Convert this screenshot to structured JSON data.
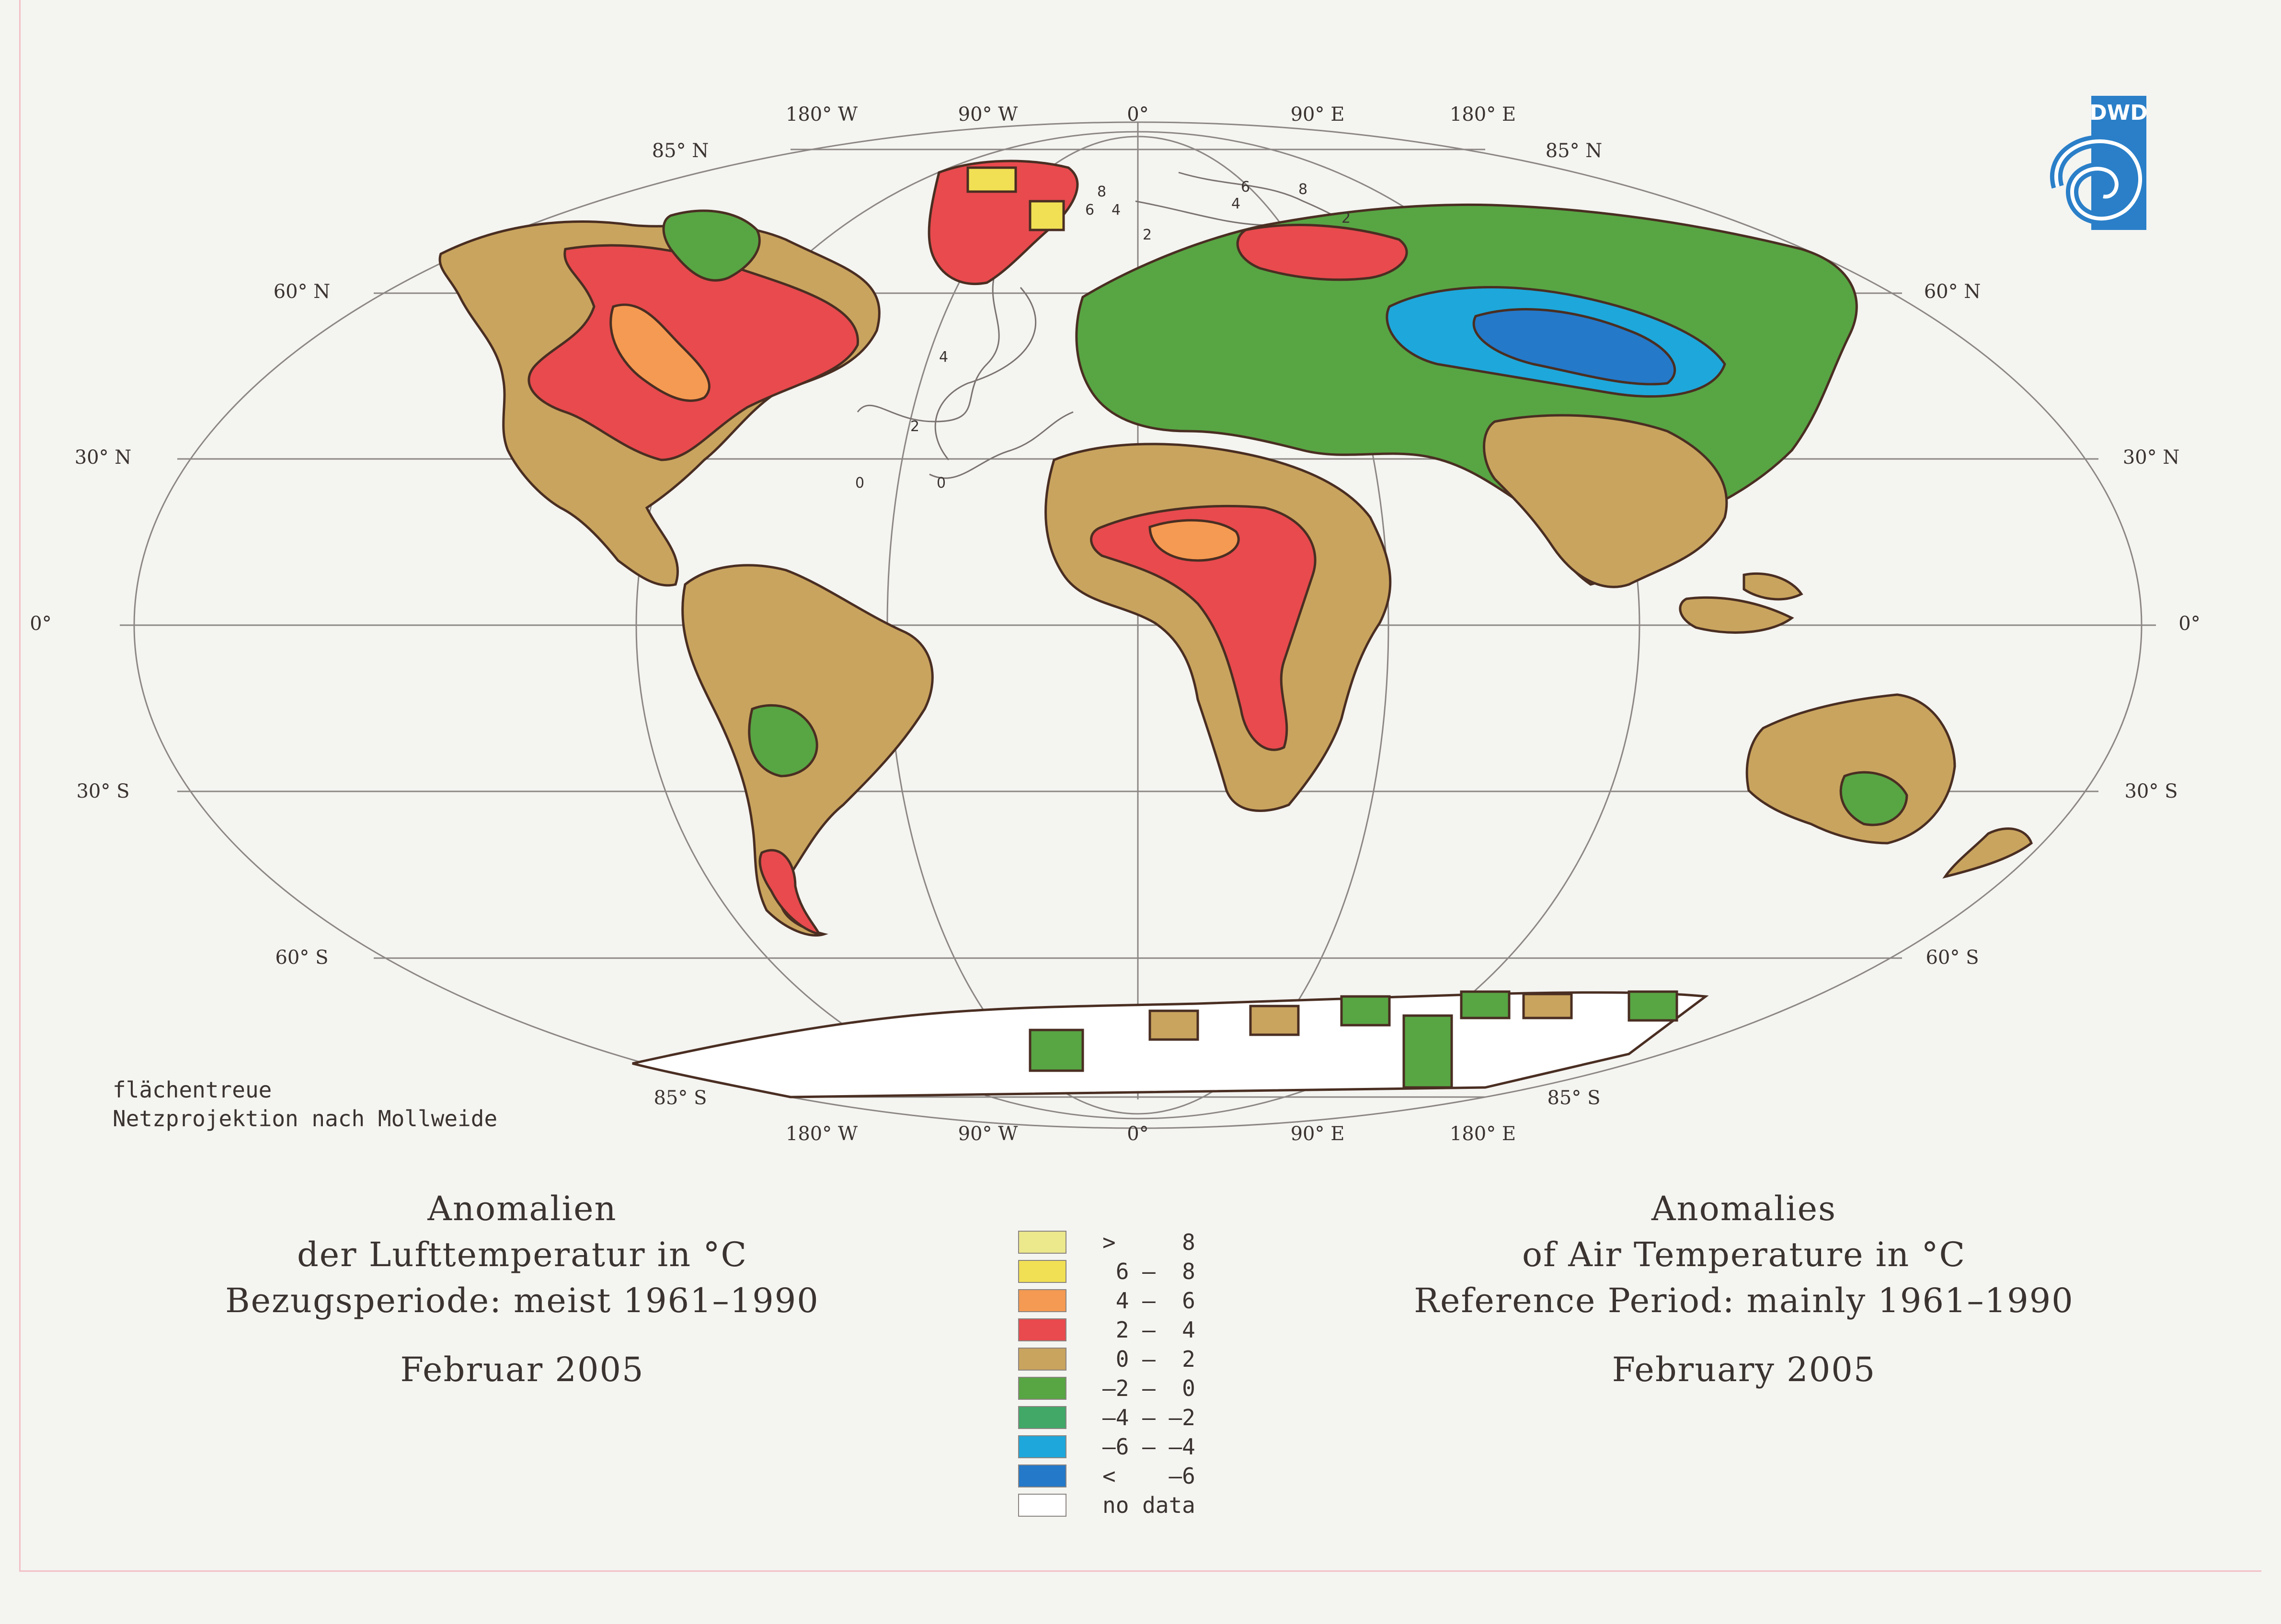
{
  "map": {
    "graticule_labels": {
      "top_lon": [
        "180° W",
        "90° W",
        "0°",
        "90° E",
        "180° E"
      ],
      "bottom_lon": [
        "180° W",
        "90° W",
        "0°",
        "90° E",
        "180° E"
      ],
      "lat_left": [
        "85° N",
        "60° N",
        "30° N",
        "0°",
        "30° S",
        "60° S",
        "85° S"
      ],
      "lat_right": [
        "85° N",
        "60° N",
        "30° N",
        "0°",
        "30° S",
        "60° S",
        "85° S"
      ]
    },
    "ocean_contour_labels": [
      "8",
      "6",
      "4",
      "2",
      "4",
      "6",
      "8",
      "2",
      "0",
      "0",
      "4",
      "2"
    ]
  },
  "projection_note": {
    "line1": "flächentreue",
    "line2": "Netzprojektion nach Mollweide"
  },
  "title_de": {
    "line1": "Anomalien",
    "line2": "der Lufttemperatur in °C",
    "line3": "Bezugsperiode: meist 1961–1990",
    "date": "Februar 2005"
  },
  "title_en": {
    "line1": "Anomalies",
    "line2": "of Air Temperature in °C",
    "line3": "Reference Period: mainly 1961–1990",
    "date": "February 2005"
  },
  "legend": [
    {
      "label": ">     8",
      "color": "#ece88c"
    },
    {
      "label": " 6 –  8",
      "color": "#f1e054"
    },
    {
      "label": " 4 –  6",
      "color": "#f59a52"
    },
    {
      "label": " 2 –  4",
      "color": "#e84a4e"
    },
    {
      "label": " 0 –  2",
      "color": "#c9a45e"
    },
    {
      "label": "–2 –  0",
      "color": "#58a544"
    },
    {
      "label": "–4 – –2",
      "color": "#41a868"
    },
    {
      "label": "–6 – –4",
      "color": "#1ea7da"
    },
    {
      "label": "<    –6",
      "color": "#2479c9"
    },
    {
      "label": "no data",
      "color": "#ffffff"
    }
  ],
  "logo": {
    "text": "DWD",
    "color": "#2a7fc8"
  }
}
